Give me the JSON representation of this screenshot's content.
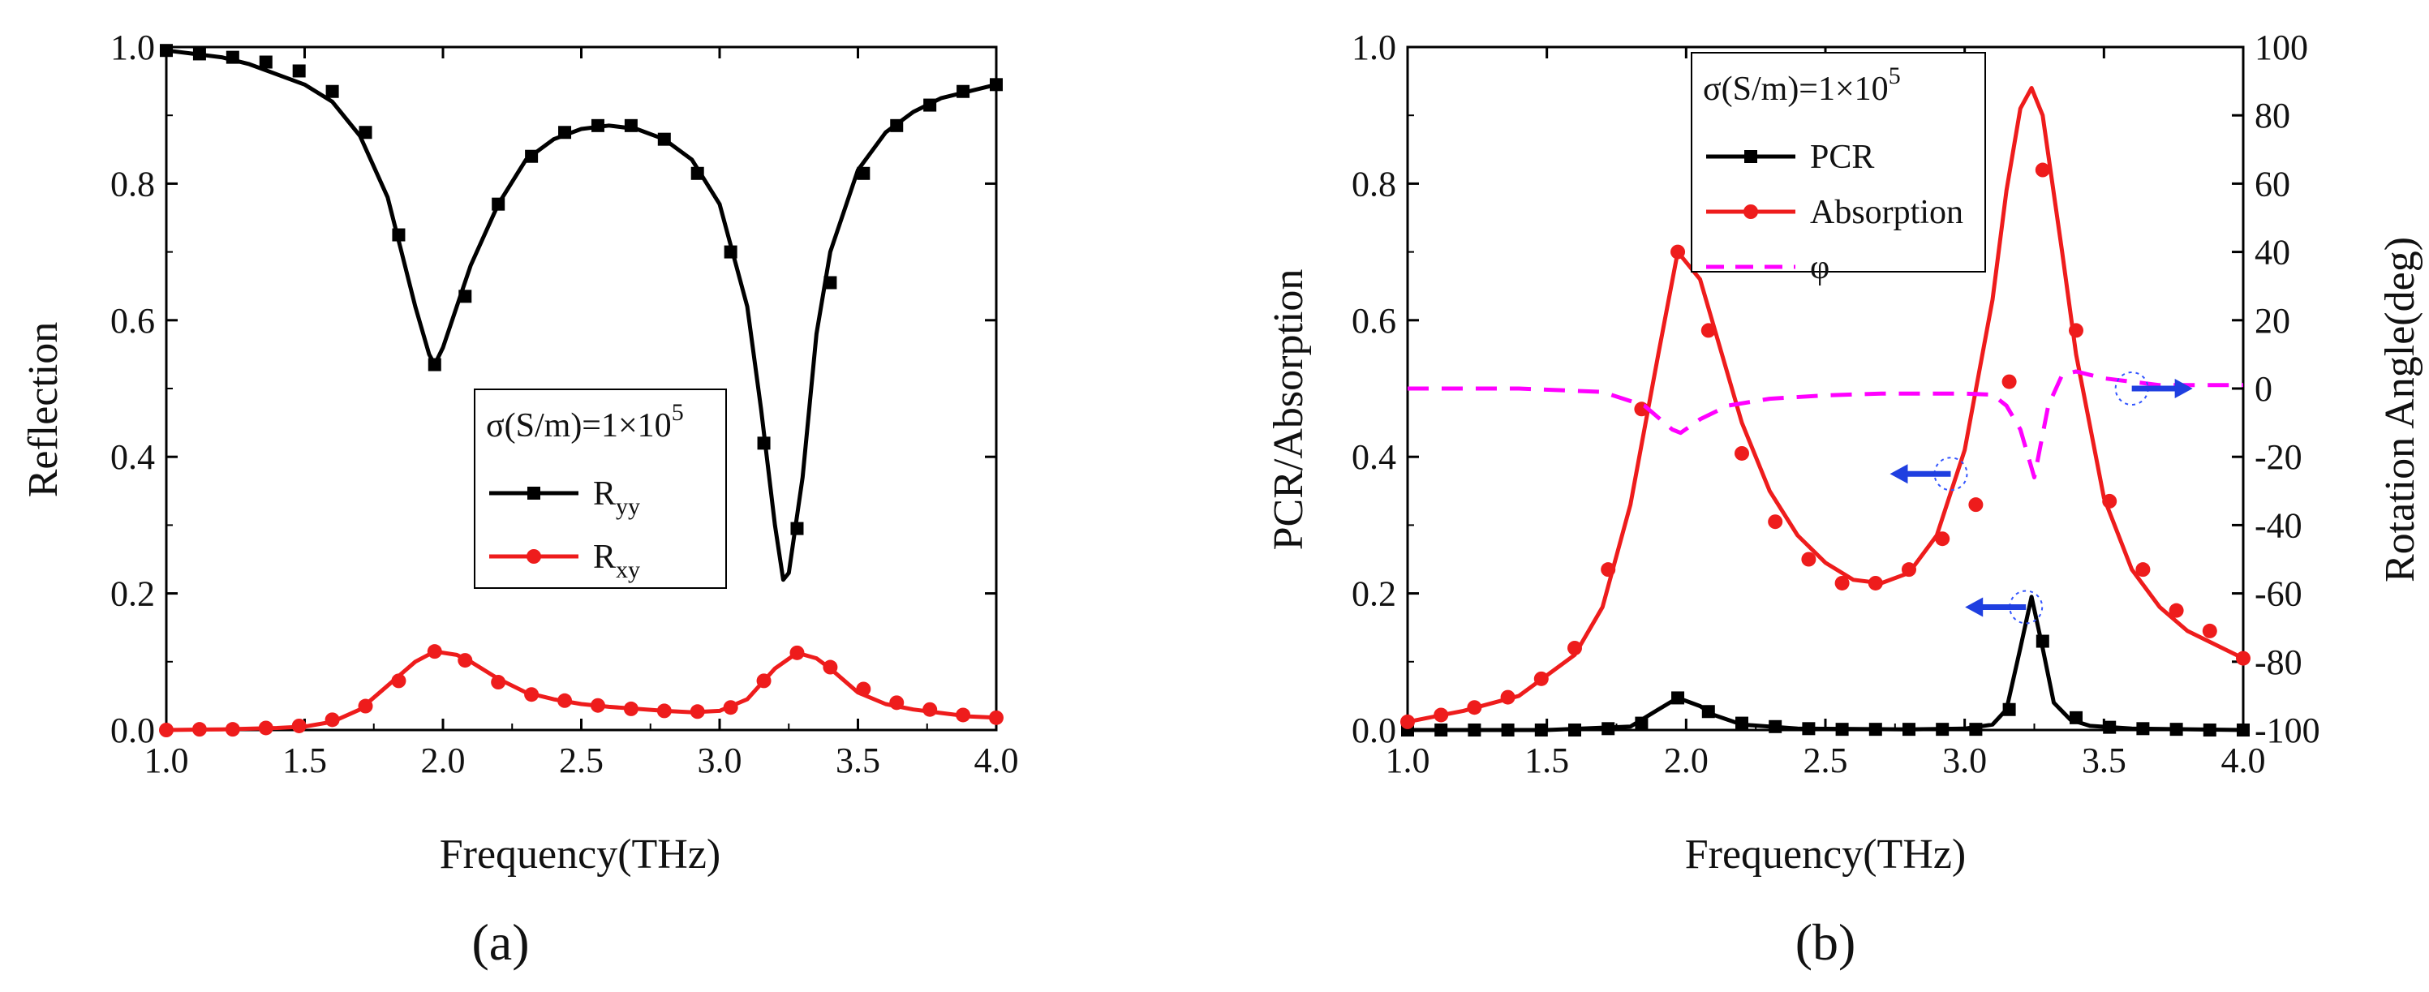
{
  "chart_data": [
    {
      "id": "a",
      "type": "line",
      "panel_label": "(a)",
      "xlabel": "Frequency(THz)",
      "ylabel": "Reflection",
      "xlim": [
        1.0,
        4.0
      ],
      "ylim": [
        0.0,
        1.0
      ],
      "x_ticks": [
        "1.0",
        "1.5",
        "2.0",
        "2.5",
        "3.0",
        "3.5",
        "4.0"
      ],
      "y_ticks": [
        "0.0",
        "0.2",
        "0.4",
        "0.6",
        "0.8",
        "1.0"
      ],
      "legend": {
        "title": "σ(S/m)=1×10",
        "title_sup": "5",
        "position": "center-right",
        "entries": [
          {
            "base": "R",
            "sub": "yy"
          },
          {
            "base": "R",
            "sub": "xy"
          }
        ]
      },
      "series": [
        {
          "name": "Ryy",
          "color": "#000000",
          "marker": "square",
          "x": [
            1.0,
            1.1,
            1.2,
            1.3,
            1.4,
            1.5,
            1.6,
            1.7,
            1.8,
            1.85,
            1.9,
            1.95,
            1.97,
            2.0,
            2.05,
            2.1,
            2.2,
            2.3,
            2.4,
            2.5,
            2.6,
            2.7,
            2.8,
            2.9,
            3.0,
            3.1,
            3.15,
            3.2,
            3.23,
            3.25,
            3.3,
            3.35,
            3.4,
            3.5,
            3.6,
            3.7,
            3.8,
            3.9,
            4.0
          ],
          "y": [
            0.995,
            0.99,
            0.985,
            0.975,
            0.96,
            0.945,
            0.92,
            0.87,
            0.78,
            0.7,
            0.62,
            0.55,
            0.535,
            0.56,
            0.62,
            0.68,
            0.77,
            0.835,
            0.865,
            0.88,
            0.885,
            0.88,
            0.865,
            0.835,
            0.77,
            0.62,
            0.47,
            0.3,
            0.22,
            0.23,
            0.37,
            0.58,
            0.7,
            0.82,
            0.875,
            0.905,
            0.925,
            0.935,
            0.945
          ],
          "markers_x": [
            1.0,
            1.12,
            1.24,
            1.36,
            1.48,
            1.6,
            1.72,
            1.84,
            1.97,
            2.08,
            2.2,
            2.32,
            2.44,
            2.56,
            2.68,
            2.8,
            2.92,
            3.04,
            3.16,
            3.28,
            3.4,
            3.52,
            3.64,
            3.76,
            3.88,
            4.0
          ],
          "markers_y": [
            0.995,
            0.99,
            0.985,
            0.978,
            0.965,
            0.935,
            0.875,
            0.725,
            0.535,
            0.635,
            0.77,
            0.84,
            0.875,
            0.885,
            0.885,
            0.865,
            0.815,
            0.7,
            0.42,
            0.295,
            0.655,
            0.815,
            0.885,
            0.915,
            0.935,
            0.945
          ]
        },
        {
          "name": "Rxy",
          "color": "#ee1c1c",
          "marker": "circle",
          "x": [
            1.0,
            1.2,
            1.4,
            1.5,
            1.6,
            1.7,
            1.8,
            1.9,
            1.97,
            2.05,
            2.1,
            2.2,
            2.3,
            2.4,
            2.5,
            2.6,
            2.7,
            2.8,
            2.9,
            3.0,
            3.1,
            3.2,
            3.28,
            3.35,
            3.4,
            3.5,
            3.6,
            3.7,
            3.8,
            3.9,
            4.0
          ],
          "y": [
            0.0,
            0.001,
            0.003,
            0.005,
            0.012,
            0.03,
            0.065,
            0.1,
            0.115,
            0.11,
            0.1,
            0.075,
            0.055,
            0.045,
            0.038,
            0.034,
            0.031,
            0.028,
            0.026,
            0.028,
            0.045,
            0.09,
            0.113,
            0.105,
            0.09,
            0.055,
            0.038,
            0.03,
            0.025,
            0.02,
            0.018
          ],
          "markers_x": [
            1.0,
            1.12,
            1.24,
            1.36,
            1.48,
            1.6,
            1.72,
            1.84,
            1.97,
            2.08,
            2.2,
            2.32,
            2.44,
            2.56,
            2.68,
            2.8,
            2.92,
            3.04,
            3.16,
            3.28,
            3.4,
            3.52,
            3.64,
            3.76,
            3.88,
            4.0
          ],
          "markers_y": [
            0.0,
            0.001,
            0.001,
            0.003,
            0.006,
            0.015,
            0.035,
            0.072,
            0.115,
            0.102,
            0.07,
            0.052,
            0.043,
            0.036,
            0.031,
            0.028,
            0.027,
            0.033,
            0.072,
            0.113,
            0.092,
            0.06,
            0.04,
            0.03,
            0.022,
            0.018
          ]
        }
      ]
    },
    {
      "id": "b",
      "type": "line",
      "panel_label": "(b)",
      "xlabel": "Frequency(THz)",
      "ylabel": "PCR/Absorption",
      "y2label": "Rotation Angle(deg)",
      "xlim": [
        1.0,
        4.0
      ],
      "ylim": [
        0.0,
        1.0
      ],
      "y2lim": [
        -100,
        100
      ],
      "x_ticks": [
        "1.0",
        "1.5",
        "2.0",
        "2.5",
        "3.0",
        "3.5",
        "4.0"
      ],
      "y_ticks": [
        "0.0",
        "0.2",
        "0.4",
        "0.6",
        "0.8",
        "1.0"
      ],
      "y2_ticks": [
        "-100",
        "-80",
        "-60",
        "-40",
        "-20",
        "0",
        "20",
        "40",
        "60",
        "80",
        "100"
      ],
      "legend": {
        "title": "σ(S/m)=1×10",
        "title_sup": "5",
        "position": "top-center",
        "entries": [
          {
            "base": "PCR",
            "sub": ""
          },
          {
            "base": "Absorption",
            "sub": ""
          },
          {
            "base": "φ",
            "sub": ""
          }
        ]
      },
      "arrows": [
        {
          "target": "y2",
          "direction": "right",
          "x": 3.6,
          "y": 0.5
        },
        {
          "target": "y",
          "direction": "left",
          "x": 2.95,
          "y": 0.375
        },
        {
          "target": "y",
          "direction": "left",
          "x": 3.22,
          "y": 0.18
        }
      ],
      "series": [
        {
          "name": "PCR",
          "color": "#000000",
          "marker": "square",
          "axis": "y",
          "x": [
            1.0,
            1.5,
            1.8,
            1.9,
            1.97,
            2.05,
            2.1,
            2.2,
            2.4,
            2.8,
            3.0,
            3.1,
            3.15,
            3.2,
            3.24,
            3.28,
            3.32,
            3.38,
            3.45,
            3.6,
            4.0
          ],
          "y": [
            0.0,
            0.0,
            0.005,
            0.03,
            0.047,
            0.035,
            0.022,
            0.008,
            0.002,
            0.001,
            0.002,
            0.008,
            0.03,
            0.12,
            0.195,
            0.12,
            0.04,
            0.015,
            0.006,
            0.002,
            0.0
          ],
          "markers_x": [
            1.0,
            1.12,
            1.24,
            1.36,
            1.48,
            1.6,
            1.72,
            1.84,
            1.97,
            2.08,
            2.2,
            2.32,
            2.44,
            2.56,
            2.68,
            2.8,
            2.92,
            3.04,
            3.16,
            3.28,
            3.4,
            3.52,
            3.64,
            3.76,
            3.88,
            4.0
          ],
          "markers_y": [
            0.0,
            0.0,
            0.0,
            0.0,
            0.0,
            0.0,
            0.002,
            0.01,
            0.047,
            0.027,
            0.01,
            0.005,
            0.002,
            0.001,
            0.001,
            0.001,
            0.001,
            0.001,
            0.03,
            0.13,
            0.018,
            0.004,
            0.002,
            0.001,
            0.0,
            0.0
          ]
        },
        {
          "name": "Absorption",
          "color": "#ee1c1c",
          "marker": "circle",
          "axis": "y",
          "x": [
            1.0,
            1.2,
            1.4,
            1.6,
            1.7,
            1.8,
            1.9,
            1.97,
            2.05,
            2.1,
            2.2,
            2.3,
            2.4,
            2.5,
            2.6,
            2.7,
            2.8,
            2.9,
            3.0,
            3.1,
            3.15,
            3.2,
            3.24,
            3.28,
            3.35,
            3.4,
            3.5,
            3.6,
            3.7,
            3.8,
            3.9,
            4.0
          ],
          "y": [
            0.012,
            0.028,
            0.05,
            0.11,
            0.18,
            0.33,
            0.55,
            0.7,
            0.66,
            0.59,
            0.45,
            0.35,
            0.285,
            0.245,
            0.22,
            0.215,
            0.23,
            0.285,
            0.41,
            0.63,
            0.79,
            0.91,
            0.94,
            0.9,
            0.7,
            0.55,
            0.34,
            0.235,
            0.18,
            0.145,
            0.125,
            0.105
          ],
          "markers_x": [
            1.0,
            1.12,
            1.24,
            1.36,
            1.48,
            1.6,
            1.72,
            1.84,
            1.97,
            2.08,
            2.2,
            2.32,
            2.44,
            2.56,
            2.68,
            2.8,
            2.92,
            3.04,
            3.16,
            3.28,
            3.4,
            3.52,
            3.64,
            3.76,
            3.88,
            4.0
          ],
          "markers_y": [
            0.012,
            0.022,
            0.033,
            0.048,
            0.075,
            0.12,
            0.235,
            0.47,
            0.7,
            0.585,
            0.405,
            0.305,
            0.25,
            0.215,
            0.215,
            0.235,
            0.28,
            0.33,
            0.51,
            0.82,
            0.585,
            0.335,
            0.235,
            0.175,
            0.145,
            0.105
          ]
        },
        {
          "name": "φ",
          "color": "#ff00ff",
          "dash": "dashed",
          "axis": "y2",
          "x": [
            1.0,
            1.4,
            1.7,
            1.85,
            1.95,
            1.98,
            2.05,
            2.15,
            2.3,
            2.5,
            2.7,
            2.9,
            3.0,
            3.1,
            3.15,
            3.2,
            3.25,
            3.3,
            3.35,
            3.4,
            3.5,
            3.6,
            3.7,
            3.8,
            4.0
          ],
          "y": [
            0,
            0,
            -1,
            -5,
            -12,
            -13,
            -9,
            -5,
            -3,
            -2,
            -1.5,
            -1.5,
            -1.5,
            -1.8,
            -5,
            -12,
            -26,
            -5,
            4,
            5,
            3,
            2,
            1,
            1,
            1
          ]
        }
      ]
    }
  ]
}
